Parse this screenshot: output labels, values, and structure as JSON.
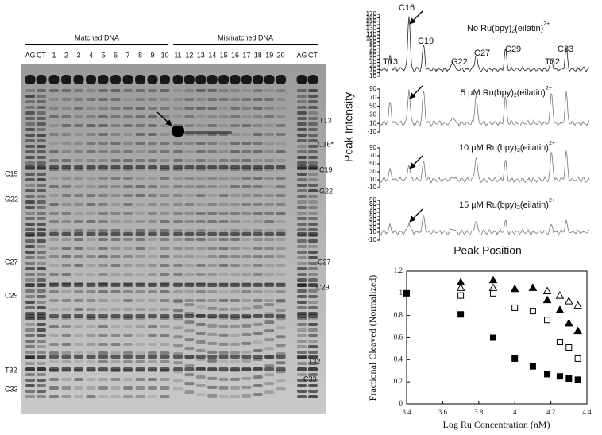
{
  "gel": {
    "groups": [
      "Matched DNA",
      "Mismatched DNA"
    ],
    "lanes": [
      "AG",
      "CT",
      "1",
      "2",
      "3",
      "4",
      "5",
      "6",
      "7",
      "8",
      "9",
      "10",
      "11",
      "12",
      "13",
      "14",
      "15",
      "16",
      "17",
      "18",
      "19",
      "20",
      "AG",
      "CT"
    ],
    "left_labels": [
      "C19",
      "G22",
      "C27",
      "C29",
      "T32",
      "C33"
    ],
    "right_labels": [
      "T13",
      "C16*",
      "C19",
      "G22",
      "C27",
      "C29",
      "T32",
      "C33"
    ]
  },
  "traces": {
    "y_label": "Peak Intensity",
    "x_label": "Peak Position",
    "peak_labels": [
      "T13",
      "C16",
      "C19",
      "G22",
      "C27",
      "C29",
      "T32",
      "C33"
    ],
    "panels": [
      {
        "title": [
          "No Ru(bpy)",
          "2",
          "(eilatin)",
          "2+"
        ],
        "yticks": [
          170,
          160,
          150,
          140,
          130,
          120,
          110,
          100,
          90,
          80,
          70,
          60,
          50,
          40,
          30,
          20,
          10,
          0,
          -10
        ]
      },
      {
        "title": [
          "5 μM Ru(bpy)",
          "2",
          "(eilatin)",
          "2+"
        ],
        "yticks": [
          90,
          70,
          50,
          30,
          10,
          -10
        ]
      },
      {
        "title": [
          "10 μM Ru(bpy)",
          "2",
          "(eilatin)",
          "2+"
        ],
        "yticks": [
          90,
          70,
          50,
          30,
          10,
          -10
        ]
      },
      {
        "title": [
          "15 μM Ru(bpy)",
          "2",
          "(eilatin)",
          "2+"
        ],
        "yticks": [
          90,
          80,
          70,
          60,
          50,
          40,
          30,
          20,
          10,
          -10
        ]
      }
    ]
  },
  "chart_data": {
    "type": "scatter",
    "xlabel": "Log Ru Concentration (nM)",
    "ylabel": "Fractional Cleaved (Normalized)",
    "xlim": [
      3.4,
      4.4
    ],
    "xticks": [
      3.4,
      3.6,
      3.8,
      4,
      4.2,
      4.4
    ],
    "ylim": [
      0,
      1.2
    ],
    "yticks": [
      0,
      0.2,
      0.4,
      0.6,
      0.8,
      1,
      1.2
    ],
    "series": [
      {
        "marker": "square",
        "color": "#000000",
        "filled": true,
        "x": [
          3.4,
          3.7,
          3.88,
          4.0,
          4.1,
          4.18,
          4.25,
          4.3,
          4.35
        ],
        "values": [
          1.0,
          0.81,
          0.6,
          0.41,
          0.34,
          0.27,
          0.25,
          0.23,
          0.22
        ]
      },
      {
        "marker": "square",
        "color": "#000000",
        "filled": false,
        "x": [
          3.7,
          3.88,
          4.0,
          4.1,
          4.18,
          4.25,
          4.3,
          4.35
        ],
        "values": [
          0.98,
          1.0,
          0.87,
          0.84,
          0.76,
          0.56,
          0.51,
          0.41
        ]
      },
      {
        "marker": "triangle",
        "color": "#000000",
        "filled": true,
        "x": [
          3.7,
          3.88,
          4.0,
          4.1,
          4.18,
          4.25,
          4.3,
          4.35
        ],
        "values": [
          1.1,
          1.12,
          1.04,
          1.05,
          0.94,
          0.85,
          0.73,
          0.66
        ]
      },
      {
        "marker": "triangle",
        "color": "#000000",
        "filled": false,
        "x": [
          3.7,
          3.88,
          4.18,
          4.25,
          4.3,
          4.35
        ],
        "values": [
          1.05,
          1.05,
          1.02,
          0.98,
          0.93,
          0.89
        ]
      }
    ]
  }
}
